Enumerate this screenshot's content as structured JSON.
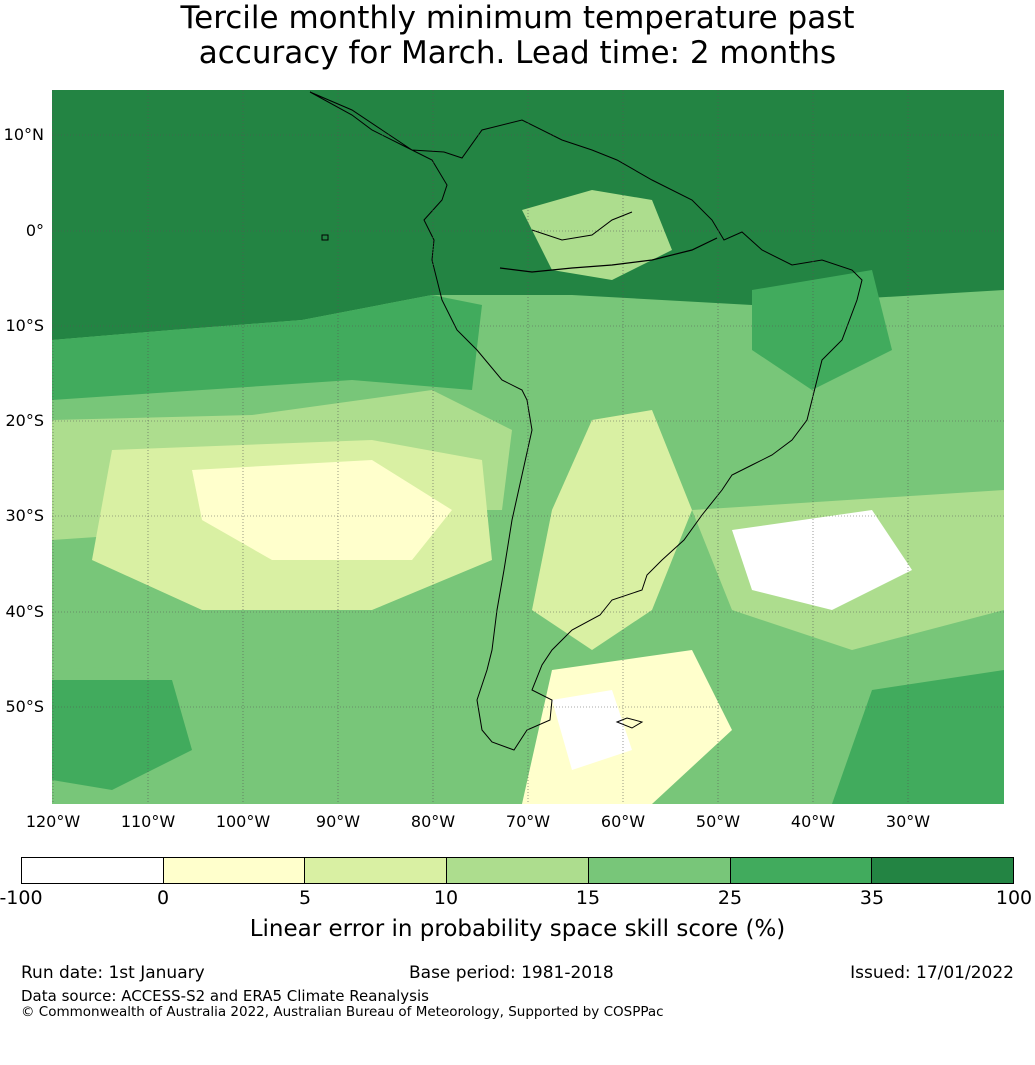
{
  "title": {
    "line1": "Tercile monthly minimum temperature past",
    "line2": "accuracy for March. Lead time: 2 months"
  },
  "map": {
    "lat_labels": [
      "10°N",
      "0°",
      "10°S",
      "20°S",
      "30°S",
      "40°S",
      "50°S"
    ],
    "lon_labels": [
      "120°W",
      "110°W",
      "100°W",
      "90°W",
      "80°W",
      "70°W",
      "60°W",
      "50°W",
      "40°W",
      "30°W"
    ]
  },
  "colorbar": {
    "colors": [
      "#ffffff",
      "#ffffcc",
      "#d9f0a3",
      "#addd8e",
      "#78c679",
      "#41ab5d",
      "#238443"
    ],
    "ticks": [
      "-100",
      "0",
      "5",
      "10",
      "15",
      "25",
      "35",
      "100"
    ],
    "label": "Linear error in probability space skill score (%)"
  },
  "footer": {
    "run_date": "Run date: 1st January",
    "base_period": "Base period: 1981-2018",
    "issued": "Issued: 17/01/2022",
    "data_source": "Data source: ACCESS-S2 and ERA5 Climate Reanalysis",
    "copyright": "© Commonwealth of Australia 2022, Australian Bureau of Meteorology, Supported by COSPPac"
  }
}
